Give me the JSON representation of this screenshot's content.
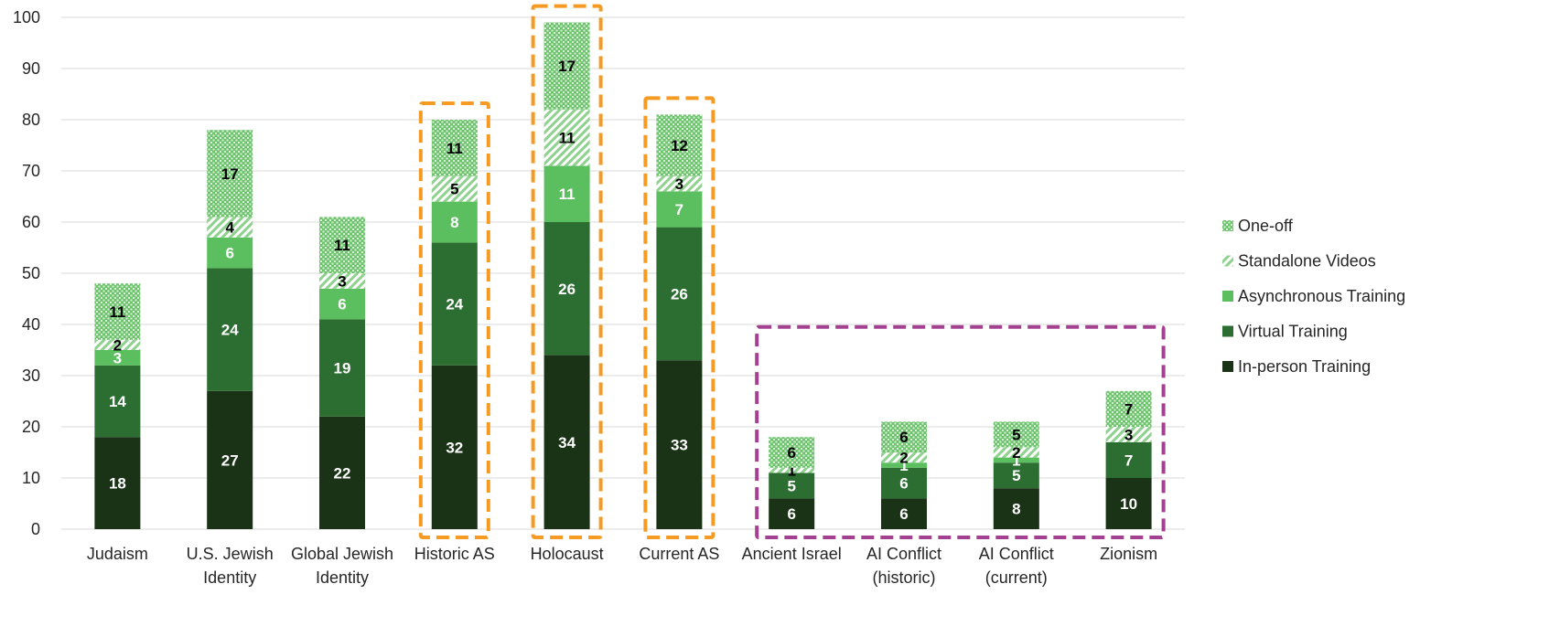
{
  "chart_data": {
    "type": "bar",
    "stacked": true,
    "title": "",
    "xlabel": "",
    "ylabel": "",
    "ylim": [
      0,
      100
    ],
    "yticks": [
      0,
      10,
      20,
      30,
      40,
      50,
      60,
      70,
      80,
      90,
      100
    ],
    "grid": true,
    "legend_position": "right",
    "categories": [
      [
        "Judaism"
      ],
      [
        "U.S. Jewish",
        "Identity"
      ],
      [
        "Global Jewish",
        "Identity"
      ],
      [
        "Historic AS"
      ],
      [
        "Holocaust"
      ],
      [
        "Current AS"
      ],
      [
        "Ancient Israel"
      ],
      [
        "AI Conflict",
        "(historic)"
      ],
      [
        "AI Conflict",
        "(current)"
      ],
      [
        "Zionism"
      ]
    ],
    "series": [
      {
        "name": "In-person Training",
        "color": "#1a3317",
        "pattern": "solid",
        "label_color": "#ffffff",
        "values": [
          18,
          27,
          22,
          32,
          34,
          33,
          6,
          6,
          8,
          10
        ]
      },
      {
        "name": "Virtual Training",
        "color": "#2c6e32",
        "pattern": "solid",
        "label_color": "#ffffff",
        "values": [
          14,
          24,
          19,
          24,
          26,
          26,
          5,
          6,
          5,
          7
        ]
      },
      {
        "name": "Asynchronous Training",
        "color": "#5cbf5f",
        "pattern": "solid",
        "label_color": "#ffffff",
        "values": [
          3,
          6,
          6,
          8,
          11,
          7,
          0,
          1,
          1,
          0
        ]
      },
      {
        "name": "Standalone Videos",
        "color": "#8fd18f",
        "pattern": "diagonal",
        "label_color": "#000000",
        "values": [
          2,
          4,
          3,
          5,
          11,
          3,
          1,
          2,
          2,
          3
        ]
      },
      {
        "name": "One-off",
        "color": "#6fc36f",
        "pattern": "dots",
        "label_color": "#000000",
        "values": [
          11,
          17,
          11,
          11,
          17,
          12,
          6,
          6,
          5,
          7
        ]
      }
    ],
    "highlight_groups": [
      {
        "categories": [
          3
        ],
        "color": "#f59a23",
        "style": "dashed"
      },
      {
        "categories": [
          4
        ],
        "color": "#f59a23",
        "style": "dashed"
      },
      {
        "categories": [
          5
        ],
        "color": "#f59a23",
        "style": "dashed"
      },
      {
        "categories": [
          6,
          7,
          8,
          9
        ],
        "color": "#a3408f",
        "style": "dashed"
      }
    ],
    "legend_order": [
      "One-off",
      "Standalone Videos",
      "Asynchronous Training",
      "Virtual Training",
      "In-person Training"
    ]
  }
}
